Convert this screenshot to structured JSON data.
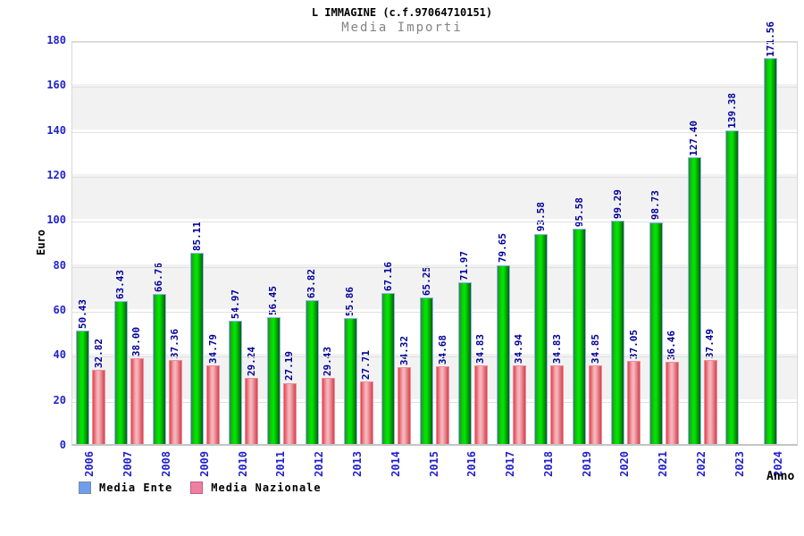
{
  "chart_data": {
    "type": "bar",
    "title": "L IMMAGINE (c.f.97064710151)",
    "subtitle": "Media Importi",
    "xlabel": "Anno",
    "ylabel": "Euro",
    "ylim": [
      0,
      180
    ],
    "yticks": [
      0,
      20,
      40,
      60,
      80,
      100,
      120,
      140,
      160,
      180
    ],
    "shaded_bands": [
      [
        20,
        40
      ],
      [
        60,
        80
      ],
      [
        100,
        120
      ],
      [
        140,
        160
      ]
    ],
    "grid": true,
    "legend_position": "bottom-left",
    "categories": [
      "2006",
      "2007",
      "2008",
      "2009",
      "2010",
      "2011",
      "2012",
      "2013",
      "2014",
      "2015",
      "2016",
      "2017",
      "2018",
      "2019",
      "2020",
      "2021",
      "2022",
      "2023",
      "2024"
    ],
    "series": [
      {
        "name": "Media Ente",
        "legend_color": "#6d9eeb",
        "legend_border": "#7a8aa0",
        "bar_gradient": [
          "#2e8b2e",
          "#00e400",
          "#0b5e0b"
        ],
        "bar_border": "#8fb4f0",
        "values": [
          50.43,
          63.43,
          66.76,
          85.11,
          54.97,
          56.45,
          63.82,
          55.86,
          67.16,
          65.25,
          71.97,
          79.65,
          93.58,
          95.58,
          99.29,
          98.73,
          127.4,
          139.38,
          171.56
        ]
      },
      {
        "name": "Media Nazionale",
        "legend_color": "#ee7fa0",
        "legend_border": "#c06080",
        "bar_gradient": [
          "#e2434f",
          "#f4b4ba",
          "#d4434f"
        ],
        "bar_border": "#ef8f99",
        "values": [
          32.82,
          38.0,
          37.36,
          34.79,
          29.24,
          27.19,
          29.43,
          27.71,
          34.32,
          34.68,
          34.83,
          34.94,
          34.83,
          34.85,
          37.05,
          36.46,
          37.49,
          null,
          null
        ]
      }
    ],
    "colors": {
      "value_label": "#000099",
      "tick_label": "#2222cc",
      "band_fill": "#f2f2f2",
      "grid_line": "#e0e0e0",
      "frame": "#d8d8d8",
      "title_text": "#000000",
      "subtitle_text": "#848484"
    }
  }
}
